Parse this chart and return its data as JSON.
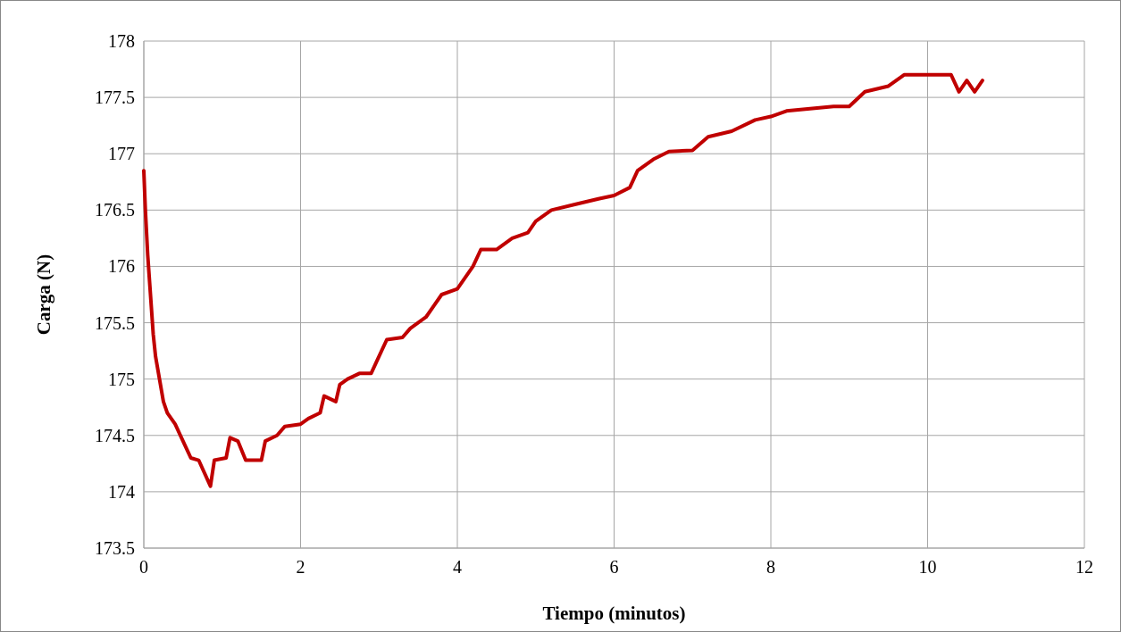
{
  "chart_data": {
    "type": "line",
    "xlabel": "Tiempo (minutos)",
    "ylabel": "Carga (N)",
    "xlim": [
      0,
      12
    ],
    "xticks": [
      0,
      2,
      4,
      6,
      8,
      10,
      12
    ],
    "ylim": [
      173.5,
      178
    ],
    "yticks": [
      173.5,
      174,
      174.5,
      175,
      175.5,
      176,
      176.5,
      177,
      177.5,
      178
    ],
    "grid": true,
    "line_style": "solid",
    "x": [
      0,
      0.02,
      0.05,
      0.08,
      0.12,
      0.15,
      0.2,
      0.25,
      0.3,
      0.4,
      0.5,
      0.6,
      0.7,
      0.85,
      0.9,
      1.05,
      1.1,
      1.2,
      1.3,
      1.5,
      1.55,
      1.7,
      1.8,
      2.0,
      2.1,
      2.25,
      2.3,
      2.45,
      2.5,
      2.6,
      2.75,
      2.9,
      3.0,
      3.1,
      3.3,
      3.4,
      3.6,
      3.7,
      3.8,
      4.0,
      4.2,
      4.3,
      4.5,
      4.7,
      4.9,
      5.0,
      5.2,
      5.5,
      5.8,
      6.0,
      6.2,
      6.3,
      6.5,
      6.7,
      7.0,
      7.2,
      7.5,
      7.8,
      8.0,
      8.2,
      8.5,
      8.8,
      9.0,
      9.2,
      9.5,
      9.7,
      10.0,
      10.3,
      10.4,
      10.5,
      10.6,
      10.7
    ],
    "series": [
      {
        "color": "#c00000",
        "values": [
          176.85,
          176.5,
          176.1,
          175.8,
          175.4,
          175.2,
          175.0,
          174.8,
          174.7,
          174.6,
          174.45,
          174.3,
          174.28,
          174.05,
          174.28,
          174.3,
          174.48,
          174.45,
          174.28,
          174.28,
          174.45,
          174.5,
          174.58,
          174.6,
          174.65,
          174.7,
          174.85,
          174.8,
          174.95,
          175.0,
          175.05,
          175.05,
          175.2,
          175.35,
          175.37,
          175.45,
          175.55,
          175.65,
          175.75,
          175.8,
          176.0,
          176.15,
          176.15,
          176.25,
          176.3,
          176.4,
          176.5,
          176.55,
          176.6,
          176.63,
          176.7,
          176.85,
          176.95,
          177.02,
          177.03,
          177.15,
          177.2,
          177.3,
          177.33,
          177.38,
          177.4,
          177.42,
          177.42,
          177.55,
          177.6,
          177.7,
          177.7,
          177.7,
          177.55,
          177.65,
          177.55,
          177.65
        ]
      }
    ]
  }
}
